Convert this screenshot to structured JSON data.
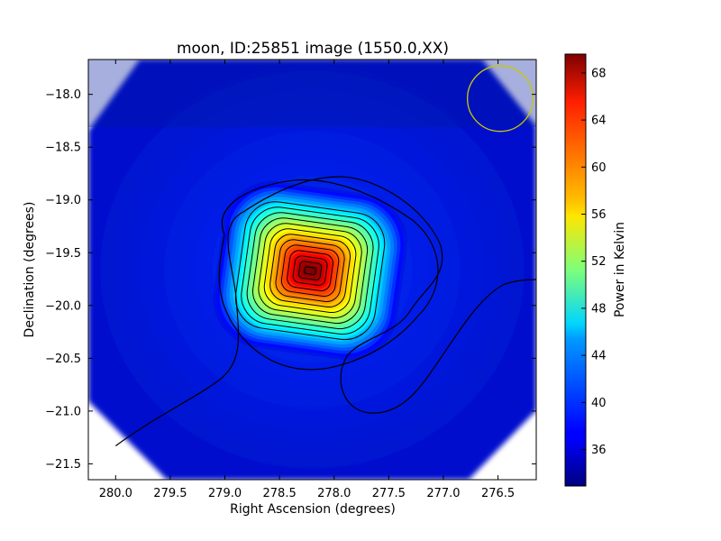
{
  "chart_data": [
    {
      "type": "heatmap",
      "title": "moon, ID:25851 image (1550.0,XX)",
      "xlabel": "Right Ascension (degrees)",
      "ylabel": "Declination (degrees)",
      "xlim": [
        280.25,
        276.15
      ],
      "ylim": [
        -21.65,
        -17.67
      ],
      "x_reversed": true,
      "x_ticks": [
        280.0,
        279.5,
        279.0,
        278.5,
        278.0,
        277.5,
        277.0,
        276.5
      ],
      "x_tick_labels": [
        "280.0",
        "279.5",
        "279.0",
        "278.5",
        "278.0",
        "277.5",
        "277.0",
        "276.5"
      ],
      "y_ticks": [
        -18.0,
        -18.5,
        -19.0,
        -19.5,
        -20.0,
        -20.5,
        -21.0,
        -21.5
      ],
      "y_tick_labels": [
        "−18.0",
        "−18.5",
        "−19.0",
        "−19.5",
        "−20.0",
        "−20.5",
        "−21.0",
        "−21.5"
      ],
      "peak": {
        "ra": 278.22,
        "dec": -19.67,
        "value": 69.5
      },
      "background_level": 36,
      "colormap": "jet",
      "grid": false,
      "beam": {
        "ra": 276.48,
        "dec": -18.04,
        "radius_deg": 0.3,
        "color": "#c8c800"
      },
      "contour_color": "#000000"
    },
    {
      "type": "colorbar",
      "label": "Power in Kelvin",
      "range": [
        32.9,
        69.6
      ],
      "ticks": [
        36,
        40,
        44,
        48,
        52,
        56,
        60,
        64,
        68
      ],
      "tick_labels": [
        "36",
        "40",
        "44",
        "48",
        "52",
        "56",
        "60",
        "64",
        "68"
      ]
    }
  ]
}
